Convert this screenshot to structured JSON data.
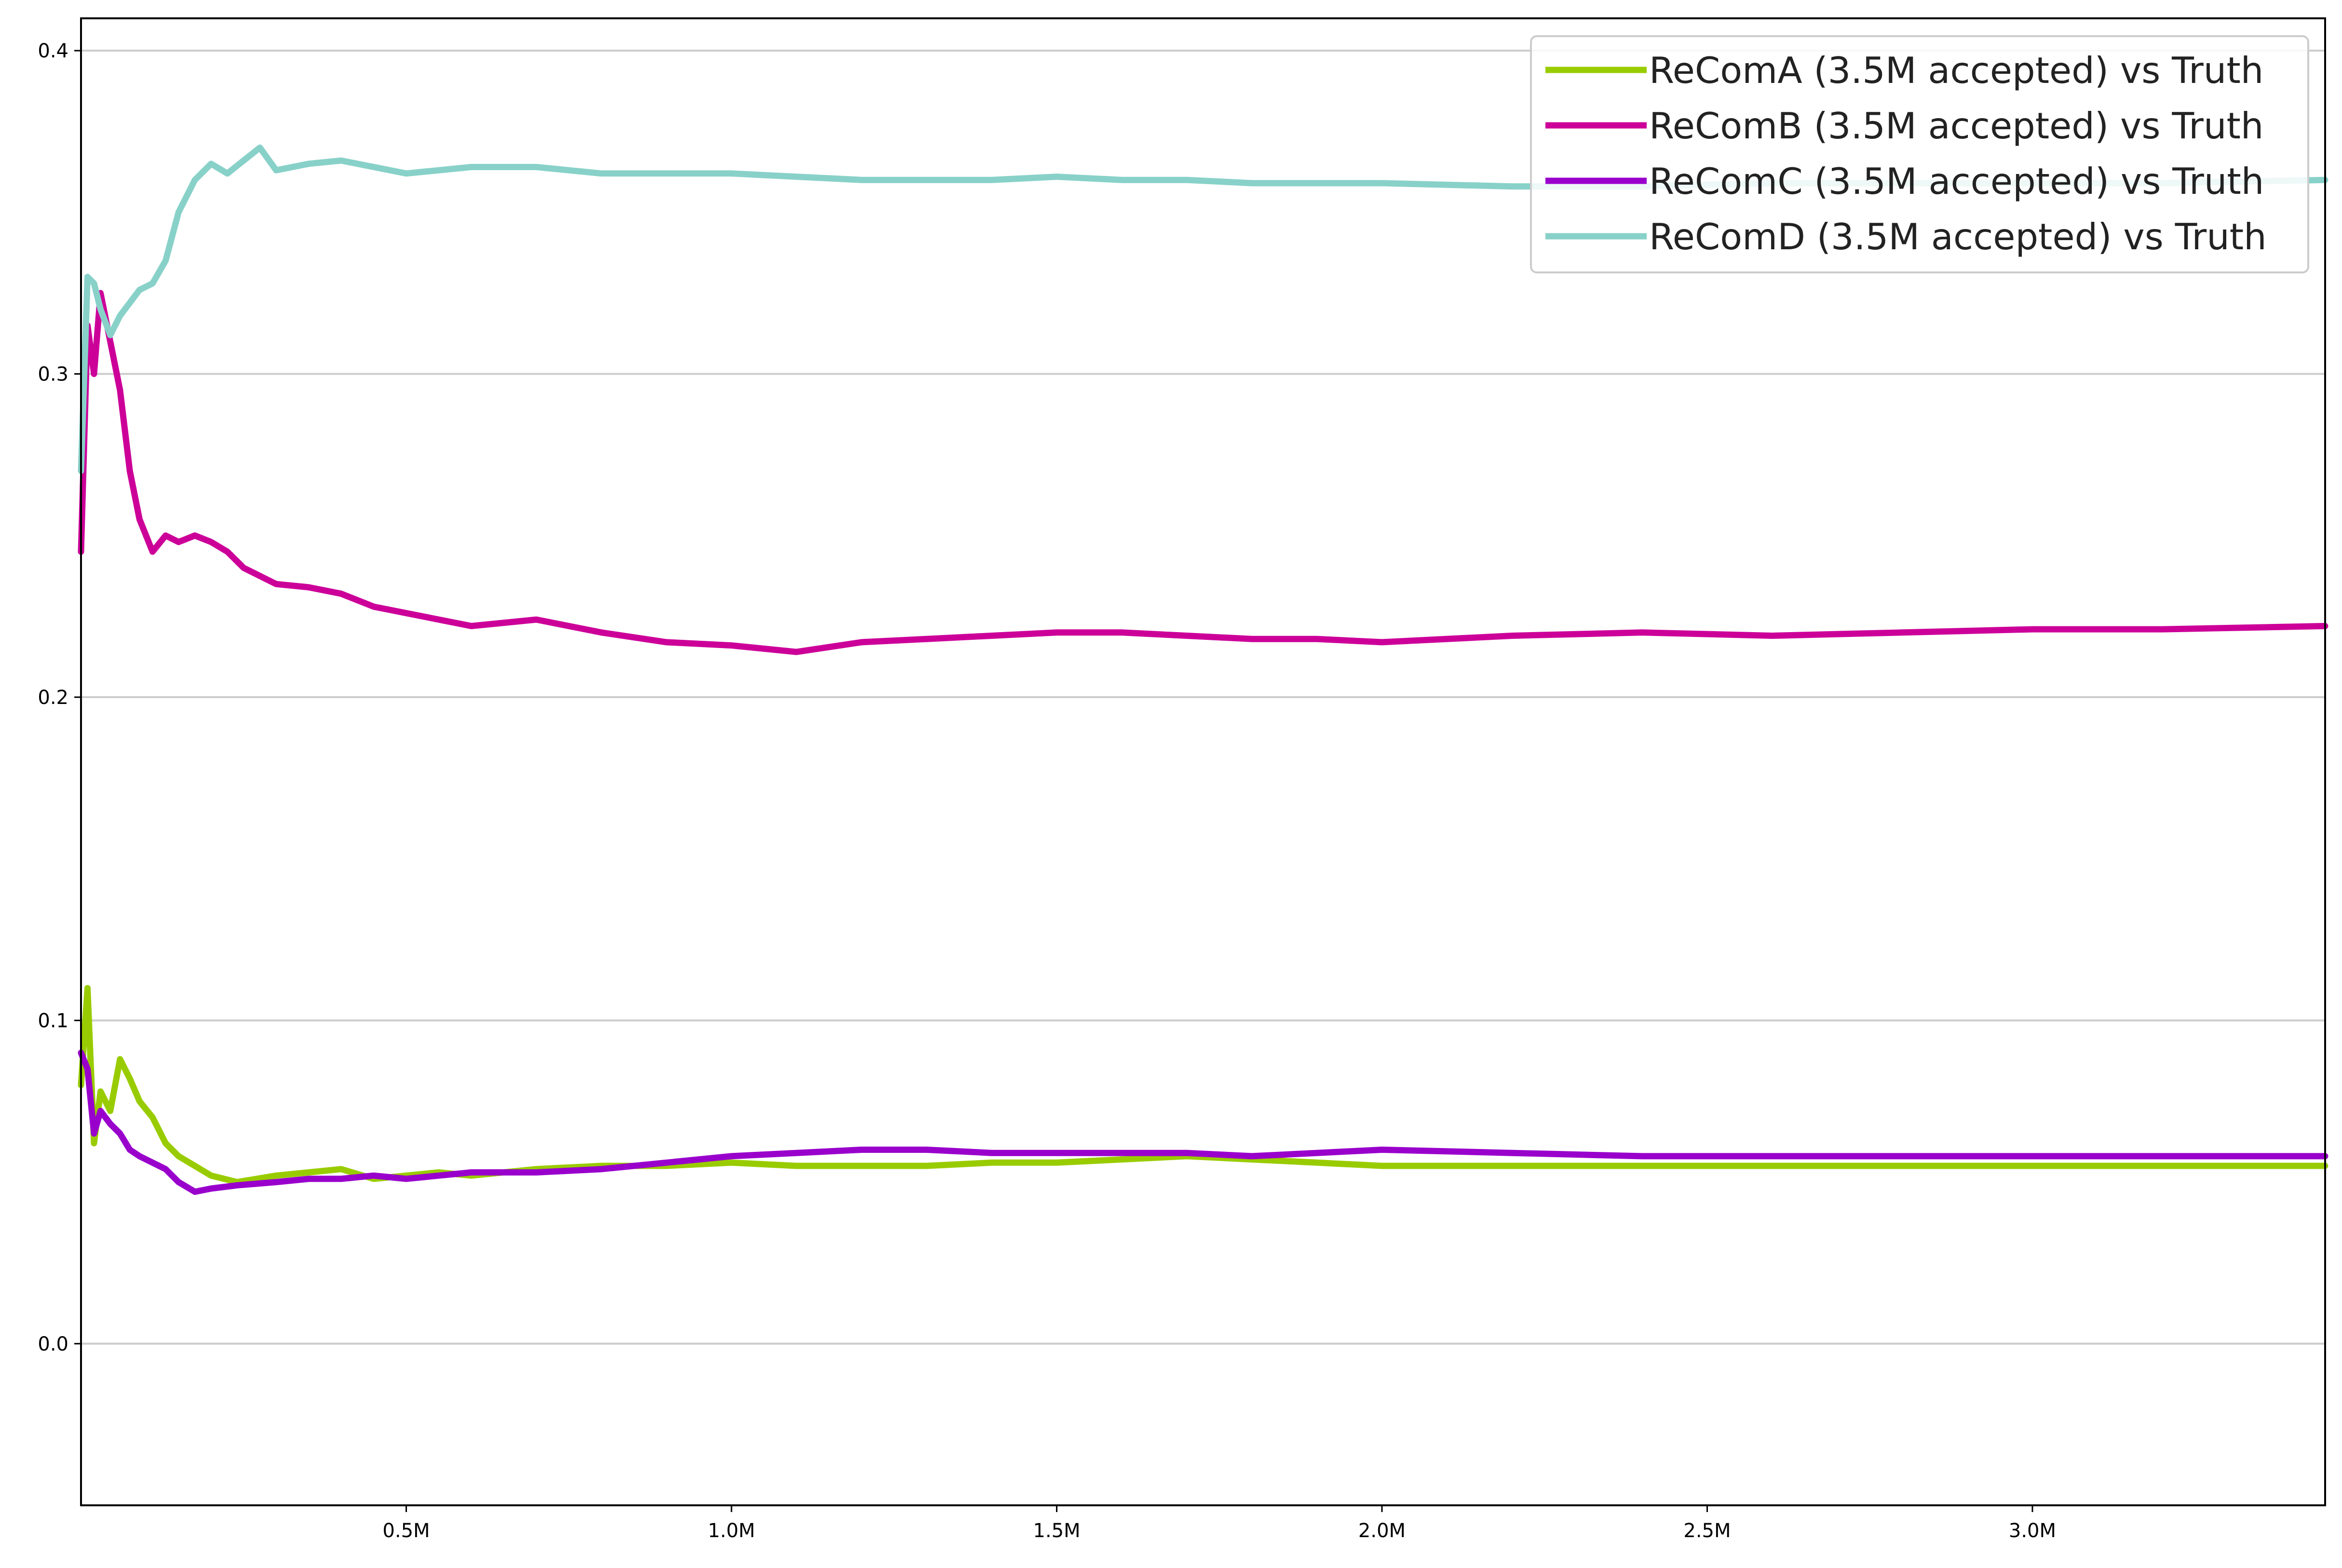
{
  "chart_data": {
    "type": "line",
    "title": "",
    "xlabel": "",
    "ylabel": "",
    "xlim": [
      0,
      3450000
    ],
    "ylim": [
      -0.05,
      0.41
    ],
    "grid": {
      "y": true,
      "x": false
    },
    "legend": {
      "placement": "top-right"
    },
    "x_ticks": [
      {
        "value": 500000,
        "label": "0.5M"
      },
      {
        "value": 1000000,
        "label": "1.0M"
      },
      {
        "value": 1500000,
        "label": "1.5M"
      },
      {
        "value": 2000000,
        "label": "2.0M"
      },
      {
        "value": 2500000,
        "label": "2.5M"
      },
      {
        "value": 3000000,
        "label": "3.0M"
      }
    ],
    "y_ticks": [
      {
        "value": 0.0,
        "label": "0.0"
      },
      {
        "value": 0.1,
        "label": "0.1"
      },
      {
        "value": 0.2,
        "label": "0.2"
      },
      {
        "value": 0.3,
        "label": "0.3"
      },
      {
        "value": 0.4,
        "label": "0.4"
      }
    ],
    "series": [
      {
        "name": "ReComA (3.5M accepted) vs Truth",
        "color": "#99cc00",
        "x": [
          0,
          10000,
          20000,
          30000,
          45000,
          60000,
          75000,
          90000,
          110000,
          130000,
          150000,
          175000,
          200000,
          240000,
          300000,
          350000,
          400000,
          450000,
          500000,
          550000,
          600000,
          700000,
          800000,
          900000,
          1000000,
          1100000,
          1200000,
          1300000,
          1400000,
          1500000,
          1600000,
          1700000,
          1800000,
          1900000,
          2000000,
          2200000,
          2400000,
          2600000,
          2800000,
          3000000,
          3200000,
          3450000
        ],
        "y": [
          0.08,
          0.11,
          0.062,
          0.078,
          0.072,
          0.088,
          0.082,
          0.075,
          0.07,
          0.062,
          0.058,
          0.055,
          0.052,
          0.05,
          0.052,
          0.053,
          0.054,
          0.051,
          0.052,
          0.053,
          0.052,
          0.054,
          0.055,
          0.055,
          0.056,
          0.055,
          0.055,
          0.055,
          0.056,
          0.056,
          0.057,
          0.058,
          0.057,
          0.056,
          0.055,
          0.055,
          0.055,
          0.055,
          0.055,
          0.055,
          0.055,
          0.055
        ]
      },
      {
        "name": "ReComB (3.5M accepted) vs Truth",
        "color": "#cc0099",
        "x": [
          0,
          10000,
          20000,
          30000,
          45000,
          60000,
          75000,
          90000,
          110000,
          130000,
          150000,
          175000,
          200000,
          225000,
          250000,
          300000,
          350000,
          400000,
          450000,
          500000,
          550000,
          600000,
          700000,
          800000,
          900000,
          1000000,
          1100000,
          1200000,
          1300000,
          1400000,
          1500000,
          1600000,
          1700000,
          1800000,
          1900000,
          2000000,
          2200000,
          2400000,
          2600000,
          2800000,
          3000000,
          3200000,
          3450000
        ],
        "y": [
          0.245,
          0.315,
          0.3,
          0.325,
          0.31,
          0.295,
          0.27,
          0.255,
          0.245,
          0.25,
          0.248,
          0.25,
          0.248,
          0.245,
          0.24,
          0.235,
          0.234,
          0.232,
          0.228,
          0.226,
          0.224,
          0.222,
          0.224,
          0.22,
          0.217,
          0.216,
          0.214,
          0.217,
          0.218,
          0.219,
          0.22,
          0.22,
          0.219,
          0.218,
          0.218,
          0.217,
          0.219,
          0.22,
          0.219,
          0.22,
          0.221,
          0.221,
          0.222
        ]
      },
      {
        "name": "ReComC (3.5M accepted) vs Truth",
        "color": "#9900cc",
        "x": [
          0,
          10000,
          20000,
          30000,
          45000,
          60000,
          75000,
          90000,
          110000,
          130000,
          150000,
          175000,
          200000,
          240000,
          300000,
          350000,
          400000,
          450000,
          500000,
          550000,
          600000,
          700000,
          800000,
          900000,
          1000000,
          1100000,
          1200000,
          1300000,
          1400000,
          1500000,
          1600000,
          1700000,
          1800000,
          1900000,
          2000000,
          2200000,
          2400000,
          2600000,
          2800000,
          3000000,
          3200000,
          3450000
        ],
        "y": [
          0.09,
          0.085,
          0.065,
          0.072,
          0.068,
          0.065,
          0.06,
          0.058,
          0.056,
          0.054,
          0.05,
          0.047,
          0.048,
          0.049,
          0.05,
          0.051,
          0.051,
          0.052,
          0.051,
          0.052,
          0.053,
          0.053,
          0.054,
          0.056,
          0.058,
          0.059,
          0.06,
          0.06,
          0.059,
          0.059,
          0.059,
          0.059,
          0.058,
          0.059,
          0.06,
          0.059,
          0.058,
          0.058,
          0.058,
          0.058,
          0.058,
          0.058
        ]
      },
      {
        "name": "ReComD (3.5M accepted) vs Truth",
        "color": "#88d1c9",
        "x": [
          0,
          10000,
          20000,
          30000,
          45000,
          60000,
          75000,
          90000,
          110000,
          130000,
          150000,
          175000,
          200000,
          225000,
          250000,
          275000,
          300000,
          350000,
          400000,
          450000,
          500000,
          550000,
          600000,
          700000,
          800000,
          900000,
          1000000,
          1100000,
          1200000,
          1300000,
          1400000,
          1500000,
          1600000,
          1700000,
          1800000,
          1900000,
          2000000,
          2200000,
          2400000,
          2600000,
          2800000,
          3000000,
          3200000,
          3450000
        ],
        "y": [
          0.27,
          0.33,
          0.328,
          0.32,
          0.312,
          0.318,
          0.322,
          0.326,
          0.328,
          0.335,
          0.35,
          0.36,
          0.365,
          0.362,
          0.366,
          0.37,
          0.363,
          0.365,
          0.366,
          0.364,
          0.362,
          0.363,
          0.364,
          0.364,
          0.362,
          0.362,
          0.362,
          0.361,
          0.36,
          0.36,
          0.36,
          0.361,
          0.36,
          0.36,
          0.359,
          0.359,
          0.359,
          0.358,
          0.358,
          0.359,
          0.359,
          0.359,
          0.359,
          0.36
        ]
      }
    ]
  }
}
